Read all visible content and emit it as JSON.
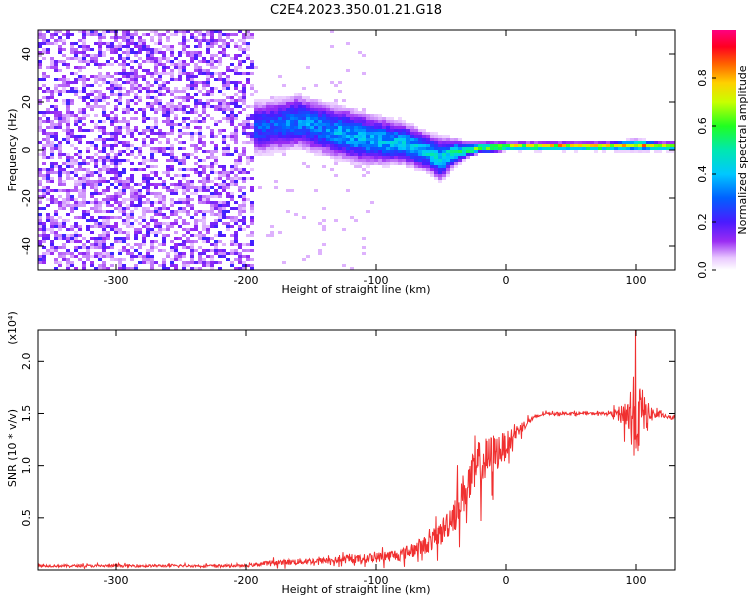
{
  "title": "C2E4.2023.350.01.21.G18",
  "chart_data": [
    {
      "type": "heatmap",
      "xlabel": "Height of straight line (km)",
      "ylabel": "Frequency (Hz)",
      "xlim": [
        -360,
        130
      ],
      "ylim": [
        -50,
        50
      ],
      "x_ticks": [
        -300,
        -200,
        -100,
        0,
        100
      ],
      "y_ticks": [
        -40,
        -20,
        0,
        20,
        40
      ],
      "colorbar": {
        "label": "Normalized spectral amplitude",
        "range": [
          0,
          1
        ],
        "ticks": [
          0.0,
          0.2,
          0.4,
          0.6,
          0.8
        ]
      },
      "ridge": {
        "x": [
          -195,
          -180,
          -160,
          -140,
          -120,
          -100,
          -80,
          -60,
          -50,
          -40,
          -30,
          -20,
          -10,
          0,
          20,
          40,
          60,
          80,
          100,
          120,
          130
        ],
        "y": [
          9,
          10,
          12,
          9,
          6,
          4,
          3,
          -1,
          -4,
          -1,
          0,
          1,
          1,
          1.5,
          1.5,
          1.5,
          1.5,
          1.5,
          2,
          1.5,
          1.5
        ],
        "spread": [
          10,
          10,
          10,
          10,
          10,
          9,
          8,
          7,
          8,
          5,
          3,
          2,
          2,
          1.5,
          1.5,
          1.5,
          1.5,
          1.5,
          2,
          1.5,
          1.5
        ],
        "peak_amplitude": [
          0.3,
          0.3,
          0.35,
          0.35,
          0.4,
          0.4,
          0.4,
          0.45,
          0.45,
          0.5,
          0.55,
          0.65,
          0.7,
          0.75,
          0.8,
          0.85,
          0.85,
          0.85,
          0.8,
          0.85,
          0.85
        ]
      },
      "noise_region_x": [
        -360,
        -195
      ]
    },
    {
      "type": "line",
      "xlabel": "Height of straight line (km)",
      "ylabel": "SNR (10 * v/v)",
      "y_multiplier": "(x10⁴)",
      "xlim": [
        -360,
        130
      ],
      "ylim": [
        0,
        2.3
      ],
      "x_ticks": [
        -300,
        -200,
        -100,
        0,
        100
      ],
      "y_ticks": [
        0.5,
        1.0,
        1.5,
        2.0
      ],
      "series": [
        {
          "color": "#f03030",
          "x": [
            -360,
            -300,
            -250,
            -200,
            -180,
            -160,
            -140,
            -120,
            -100,
            -80,
            -60,
            -50,
            -40,
            -30,
            -20,
            -10,
            0,
            10,
            20,
            30,
            40,
            60,
            80,
            90,
            95,
            100,
            105,
            110,
            120,
            130
          ],
          "y": [
            0.04,
            0.04,
            0.04,
            0.04,
            0.07,
            0.08,
            0.09,
            0.1,
            0.12,
            0.15,
            0.25,
            0.35,
            0.55,
            0.8,
            1.0,
            1.1,
            1.2,
            1.35,
            1.45,
            1.5,
            1.5,
            1.5,
            1.5,
            1.5,
            1.5,
            1.45,
            1.5,
            1.5,
            1.48,
            1.45
          ],
          "noise": [
            0.02,
            0.02,
            0.02,
            0.02,
            0.04,
            0.05,
            0.05,
            0.06,
            0.08,
            0.1,
            0.15,
            0.2,
            0.3,
            0.35,
            0.4,
            0.35,
            0.2,
            0.1,
            0.04,
            0.02,
            0.02,
            0.02,
            0.02,
            0.15,
            0.45,
            0.7,
            0.4,
            0.15,
            0.03,
            0.03
          ]
        }
      ]
    }
  ]
}
